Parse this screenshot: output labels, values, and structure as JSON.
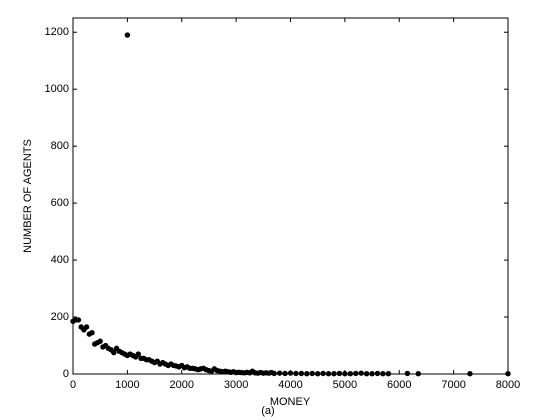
{
  "chart_data": {
    "type": "scatter",
    "x_label": "MONEY",
    "y_label": "NUMBER OF AGENTS",
    "caption": "(a)",
    "xlim": [
      0,
      8000
    ],
    "xticks": [
      0,
      1000,
      2000,
      3000,
      4000,
      5000,
      6000,
      7000,
      8000
    ],
    "ylim": [
      0,
      1250
    ],
    "yticks": [
      0,
      200,
      400,
      600,
      800,
      1000,
      1200
    ],
    "color": "#000000",
    "x": [
      0,
      50,
      100,
      150,
      200,
      250,
      300,
      350,
      400,
      450,
      500,
      550,
      600,
      650,
      700,
      750,
      800,
      850,
      900,
      950,
      1000,
      1000,
      1050,
      1100,
      1150,
      1200,
      1250,
      1300,
      1350,
      1400,
      1450,
      1500,
      1550,
      1600,
      1650,
      1700,
      1750,
      1800,
      1850,
      1900,
      1950,
      2000,
      2050,
      2100,
      2150,
      2200,
      2250,
      2300,
      2350,
      2400,
      2450,
      2500,
      2550,
      2600,
      2650,
      2700,
      2750,
      2800,
      2850,
      2900,
      2950,
      3000,
      3050,
      3100,
      3150,
      3200,
      3250,
      3300,
      3350,
      3400,
      3450,
      3500,
      3550,
      3600,
      3650,
      3700,
      3800,
      3900,
      4000,
      4100,
      4200,
      4300,
      4400,
      4500,
      4600,
      4700,
      4800,
      4900,
      5000,
      5100,
      5200,
      5300,
      5400,
      5500,
      5600,
      5700,
      5800,
      6150,
      6350,
      7300,
      8000
    ],
    "y": [
      185,
      190,
      190,
      165,
      155,
      165,
      140,
      145,
      105,
      110,
      115,
      95,
      100,
      90,
      85,
      75,
      90,
      80,
      75,
      70,
      1190,
      65,
      70,
      65,
      60,
      70,
      55,
      55,
      50,
      50,
      45,
      40,
      45,
      35,
      40,
      35,
      30,
      35,
      30,
      28,
      25,
      30,
      22,
      25,
      20,
      20,
      18,
      15,
      18,
      20,
      15,
      12,
      10,
      18,
      12,
      10,
      8,
      10,
      8,
      6,
      8,
      5,
      6,
      5,
      4,
      6,
      4,
      10,
      4,
      3,
      5,
      3,
      4,
      3,
      5,
      2,
      3,
      2,
      3,
      2,
      2,
      1,
      2,
      1,
      2,
      1,
      1,
      2,
      1,
      1,
      2,
      3,
      1,
      1,
      2,
      1,
      1,
      2,
      1,
      1,
      1
    ]
  }
}
